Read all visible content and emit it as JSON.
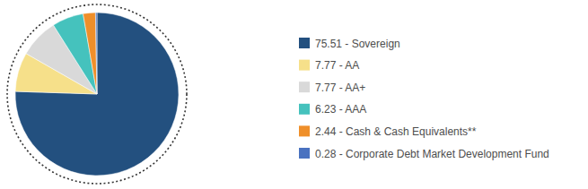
{
  "chart_data": {
    "type": "pie",
    "categories": [
      "75.51 - Sovereign",
      "7.77 - AA",
      "7.77 - AA+",
      "6.23 - AAA",
      "2.44 - Cash & Cash Equivalents**",
      "0.28 - Corporate Debt Market Development Fund"
    ],
    "values": [
      75.51,
      7.77,
      7.77,
      6.23,
      2.44,
      0.28
    ],
    "colors": [
      "#23507f",
      "#f6e08a",
      "#d9d9d9",
      "#45c2bd",
      "#ef8f2a",
      "#4a72c0"
    ],
    "legend": "right"
  }
}
